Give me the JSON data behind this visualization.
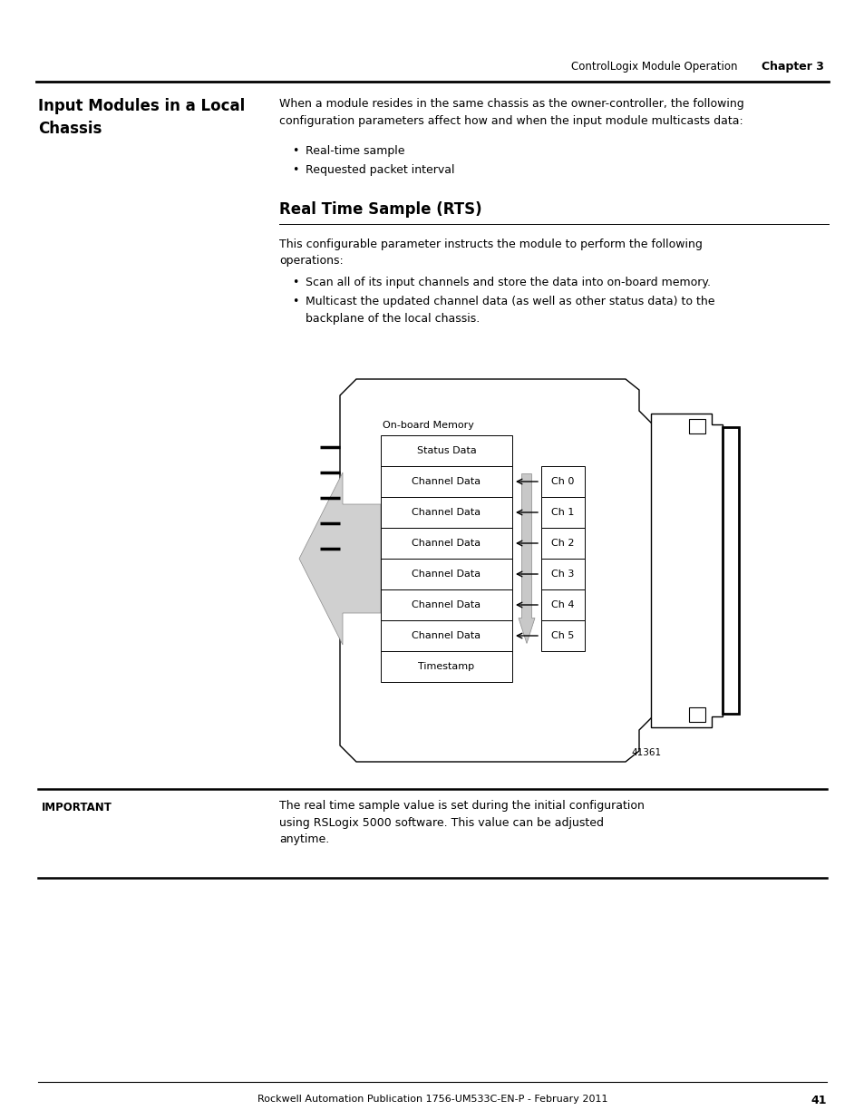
{
  "page_title_left": "Input Modules in a Local\nChassis",
  "header_right": "ControlLogix Module Operation",
  "header_chapter": "Chapter 3",
  "page_number": "41",
  "footer_text": "Rockwell Automation Publication 1756-UM533C-EN-P - February 2011",
  "section_intro": "When a module resides in the same chassis as the owner-controller, the following\nconfiguration parameters affect how and when the input module multicasts data:",
  "bullet1": "Real-time sample",
  "bullet2": "Requested packet interval",
  "subsection_title": "Real Time Sample (RTS)",
  "subsection_intro": "This configurable parameter instructs the module to perform the following\noperations:",
  "bullet3": "Scan all of its input channels and store the data into on-board memory.",
  "bullet4": "Multicast the updated channel data (as well as other status data) to the\nbackplane of the local chassis.",
  "diagram_label": "On-board Memory",
  "diagram_rows": [
    "Status Data",
    "Channel Data",
    "Channel Data",
    "Channel Data",
    "Channel Data",
    "Channel Data",
    "Channel Data",
    "Timestamp"
  ],
  "channel_labels": [
    "Ch 0",
    "Ch 1",
    "Ch 2",
    "Ch 3",
    "Ch 4",
    "Ch 5"
  ],
  "figure_num": "41361",
  "important_label": "IMPORTANT",
  "important_text": "The real time sample value is set during the initial configuration\nusing RSLogix 5000 software. This value can be adjusted\nanytime.",
  "bg_color": "#ffffff",
  "text_color": "#000000",
  "light_gray": "#d0d0d0",
  "medium_gray": "#a0a0a0",
  "box_fill": "#ffffff",
  "arrow_gray": "#c8c8c8"
}
